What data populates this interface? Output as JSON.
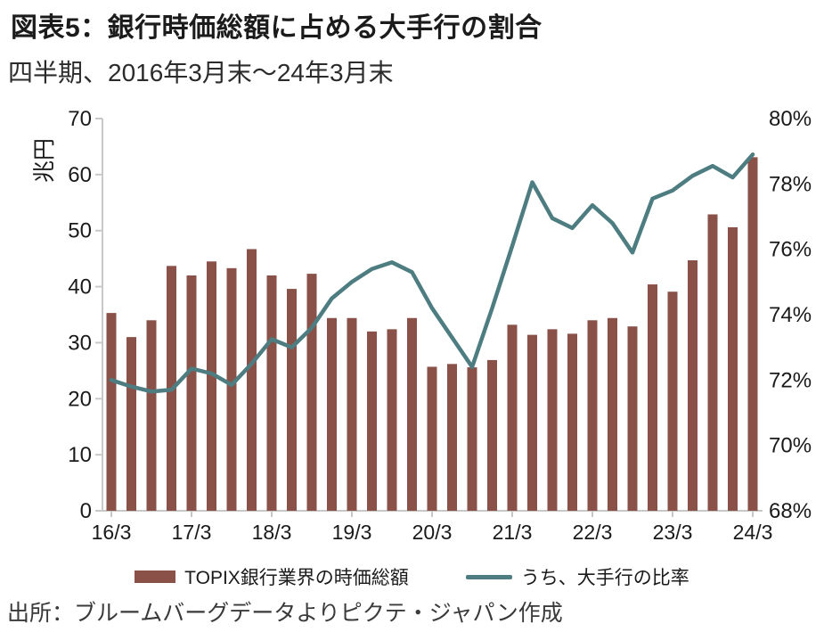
{
  "title": "図表5：銀行時価総額に占める大手行の割合",
  "subtitle": "四半期、2016年3月末～24年3月末",
  "source": "出所：ブルームバーグデータよりピクテ・ジャパン作成",
  "colors": {
    "bar": "#8a5148",
    "line": "#4d7d81",
    "axis": "#c8c8c8",
    "text": "#1a1a1a"
  },
  "chart_data": {
    "type": "bar",
    "subtype": "bar+line dual axis",
    "title": "図表5：銀行時価総額に占める大手行の割合",
    "left_axis": {
      "label": "兆円",
      "min": 0,
      "max": 70,
      "ticks": [
        0,
        10,
        20,
        30,
        40,
        50,
        60,
        70
      ]
    },
    "right_axis": {
      "min": 68,
      "max": 80,
      "ticks": [
        "68%",
        "70%",
        "72%",
        "74%",
        "76%",
        "78%",
        "80%"
      ],
      "unit": "%"
    },
    "x_year_tick_labels": [
      "16/3",
      "17/3",
      "18/3",
      "19/3",
      "20/3",
      "21/3",
      "22/3",
      "23/3",
      "24/3"
    ],
    "categories": [
      "16/3",
      "16/6",
      "16/9",
      "16/12",
      "17/3",
      "17/6",
      "17/9",
      "17/12",
      "18/3",
      "18/6",
      "18/9",
      "18/12",
      "19/3",
      "19/6",
      "19/9",
      "19/12",
      "20/3",
      "20/6",
      "20/9",
      "20/12",
      "21/3",
      "21/6",
      "21/9",
      "21/12",
      "22/3",
      "22/6",
      "22/9",
      "22/12",
      "23/3",
      "23/6",
      "23/9",
      "23/12",
      "24/3"
    ],
    "series": [
      {
        "name": "TOPIX銀行業界の時価総額",
        "type": "bar",
        "axis": "left",
        "color": "#8a5148",
        "values": [
          35.3,
          31.0,
          34.0,
          43.7,
          42.0,
          44.5,
          43.3,
          46.7,
          42.0,
          39.6,
          42.3,
          34.4,
          34.4,
          32.0,
          32.4,
          34.4,
          25.7,
          26.2,
          25.6,
          26.9,
          33.2,
          31.4,
          32.4,
          31.6,
          34.0,
          34.4,
          32.9,
          40.4,
          39.1,
          44.7,
          52.9,
          50.6,
          63.1
        ]
      },
      {
        "name": "うち、大手行の比率",
        "type": "line",
        "axis": "right",
        "color": "#4d7d81",
        "values": [
          72.0,
          71.8,
          71.65,
          71.7,
          72.35,
          72.2,
          71.85,
          72.5,
          73.25,
          73.0,
          73.6,
          74.5,
          75.0,
          75.4,
          75.6,
          75.3,
          74.2,
          73.3,
          72.4,
          74.2,
          76.1,
          78.05,
          76.95,
          76.65,
          77.35,
          76.8,
          75.9,
          77.55,
          77.8,
          78.25,
          78.55,
          78.2,
          78.9
        ]
      }
    ],
    "legend_position": "bottom",
    "grid": false
  }
}
